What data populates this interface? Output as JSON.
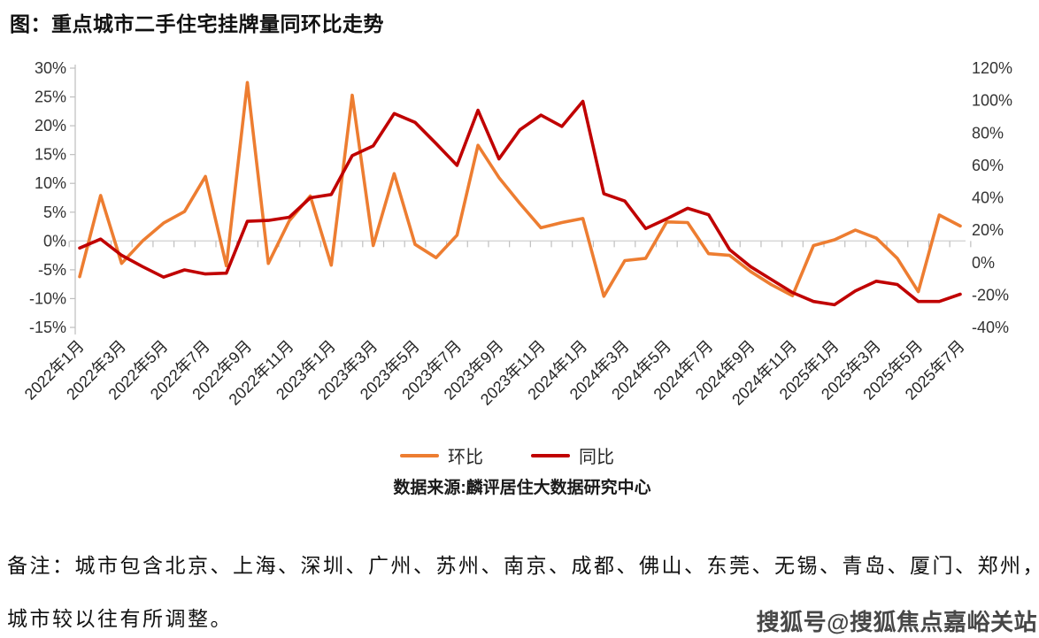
{
  "title": "图：重点城市二手住宅挂牌量同环比走势",
  "legend": {
    "series1_label": "环比",
    "series2_label": "同比"
  },
  "source": "数据来源:麟评居住大数据研究中心",
  "note_line1": "备注：城市包含北京、上海、深圳、广州、苏州、南京、成都、佛山、东莞、无锡、青岛、厦门、郑州，",
  "note_line2": "城市较以往有所调整。",
  "watermark": "搜狐号@搜狐焦点嘉峪关站",
  "colors": {
    "mom_line": "#ED7D31",
    "yoy_line": "#C00000",
    "gridline": "#D9D9D9",
    "axis": "#BFBFBF",
    "tick_text": "#333333"
  },
  "chart_data": {
    "type": "line",
    "title": "图：重点城市二手住宅挂牌量同环比走势",
    "x": [
      "2022年1月",
      "2022年2月",
      "2022年3月",
      "2022年4月",
      "2022年5月",
      "2022年6月",
      "2022年7月",
      "2022年8月",
      "2022年9月",
      "2022年10月",
      "2022年11月",
      "2022年12月",
      "2023年1月",
      "2023年2月",
      "2023年3月",
      "2023年4月",
      "2023年5月",
      "2023年6月",
      "2023年7月",
      "2023年8月",
      "2023年9月",
      "2023年10月",
      "2023年11月",
      "2023年12月",
      "2024年1月",
      "2024年2月",
      "2024年3月",
      "2024年4月",
      "2024年5月",
      "2024年6月",
      "2024年7月",
      "2024年8月",
      "2024年9月",
      "2024年10月",
      "2024年11月",
      "2024年12月",
      "2025年1月",
      "2025年2月",
      "2025年3月",
      "2025年4月",
      "2025年5月",
      "2025年6月",
      "2025年7月"
    ],
    "x_tick_labels": [
      "2022年1月",
      "2022年3月",
      "2022年5月",
      "2022年7月",
      "2022年9月",
      "2022年11月",
      "2023年1月",
      "2023年3月",
      "2023年5月",
      "2023年7月",
      "2023年9月",
      "2023年11月",
      "2024年1月",
      "2024年3月",
      "2024年5月",
      "2024年7月",
      "2024年9月",
      "2024年11月",
      "2025年1月",
      "2025年3月",
      "2025年5月",
      "2025年7月"
    ],
    "series": [
      {
        "name": "环比",
        "axis": "left",
        "color": "#ED7D31",
        "values": [
          -6.2,
          7.9,
          -3.9,
          0,
          3.1,
          5.1,
          11.2,
          -4.3,
          27.5,
          -3.9,
          3.5,
          7.8,
          -4.2,
          25.3,
          -0.8,
          11.7,
          -0.6,
          -2.9,
          1,
          16.6,
          11,
          6.5,
          2.3,
          3.2,
          3.9,
          -9.6,
          -3.4,
          -3,
          3.3,
          3.2,
          -2.2,
          -2.5,
          -5.3,
          -7.6,
          -9.5,
          -0.8,
          0.2,
          1.9,
          0.5,
          -3,
          -8.8,
          4.5,
          2.6
        ]
      },
      {
        "name": "同比",
        "axis": "right",
        "color": "#C00000",
        "values": [
          9,
          14.5,
          4.5,
          -2.5,
          -9,
          -4.5,
          -7,
          -6.5,
          25.5,
          26,
          28,
          40,
          42,
          66,
          72,
          92,
          86.5,
          73.5,
          60,
          94,
          64,
          82,
          91,
          84,
          99.5,
          42.5,
          38,
          21,
          27,
          33.5,
          29.5,
          8,
          -2.5,
          -10.5,
          -18.5,
          -24,
          -26,
          -17.5,
          -11.5,
          -13.5,
          -24,
          -24,
          -19.5
        ]
      }
    ],
    "left_axis": {
      "min": -15,
      "max": 30,
      "tick_values": [
        30,
        25,
        20,
        15,
        10,
        5,
        0,
        -5,
        -10,
        -15
      ],
      "tick_labels": [
        "30%",
        "25%",
        "20%",
        "15%",
        "10%",
        "5%",
        "0%",
        "-5%",
        "-10%",
        "-15%"
      ]
    },
    "right_axis": {
      "min": -40,
      "max": 120,
      "tick_values": [
        120,
        100,
        80,
        60,
        40,
        20,
        0,
        -20,
        -40
      ],
      "tick_labels": [
        "120%",
        "100%",
        "80%",
        "60%",
        "40%",
        "20%",
        "0%",
        "-20%",
        "-40%"
      ]
    },
    "gridlines": "horizontal zero line of left axis only",
    "legend_position": "bottom-center"
  }
}
